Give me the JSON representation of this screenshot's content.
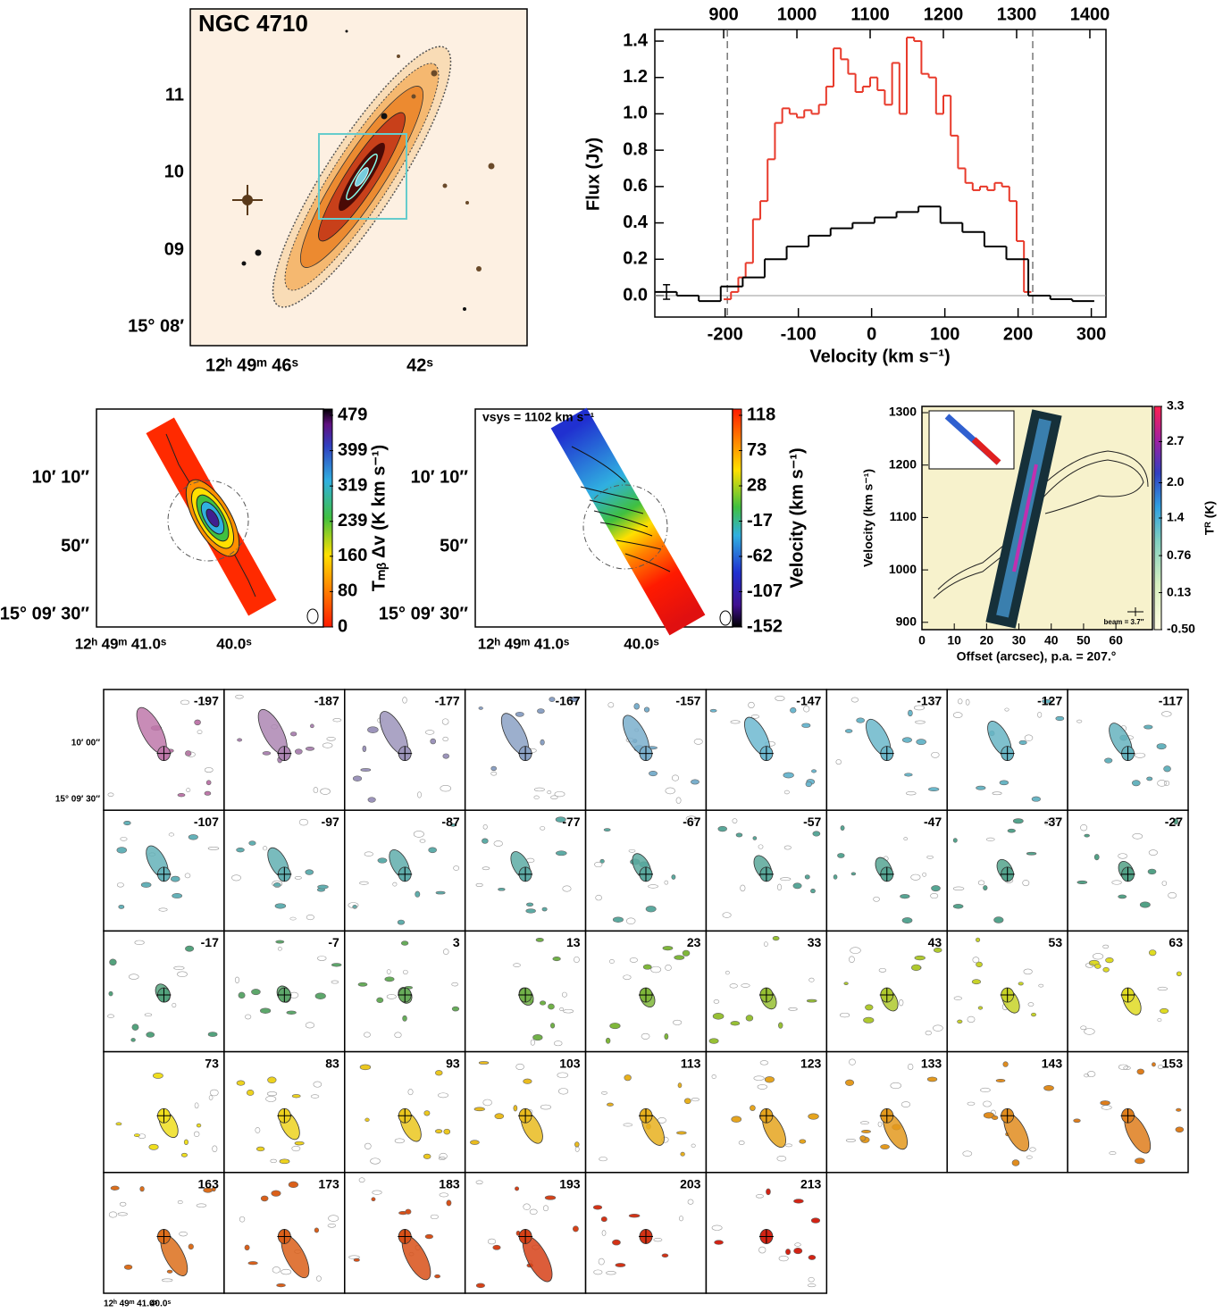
{
  "optical_panel": {
    "title": "NGC 4710",
    "ytick_labels": [
      "11",
      "10",
      "09",
      "15° 08′"
    ],
    "xtick_labels": [
      "12ʰ 49ᵐ 46ˢ",
      "42ˢ"
    ]
  },
  "chart_data": {
    "type": "step",
    "xlabel": "Velocity (km s⁻¹)",
    "ylabel": "Flux (Jy)",
    "xlim": [
      -296,
      320
    ],
    "ylim": [
      -0.118,
      1.464
    ],
    "xticks": [
      -200,
      -100,
      0,
      100,
      200,
      300
    ],
    "yticks": [
      {
        "value": 0,
        "label": "0.0"
      },
      {
        "value": 0.2,
        "label": "0.2"
      },
      {
        "value": 0.4,
        "label": "0.4"
      },
      {
        "value": 0.6,
        "label": "0.6"
      },
      {
        "value": 0.8,
        "label": "0.8"
      },
      {
        "value": 1,
        "label": "1.0"
      },
      {
        "value": 1.2,
        "label": "1.2"
      },
      {
        "value": 1.4,
        "label": "1.4"
      }
    ],
    "x2lim": [
      806,
      1422
    ],
    "x2ticks": [
      900,
      1000,
      1100,
      1200,
      1300,
      1400
    ],
    "vlines": [
      -197,
      220
    ],
    "error_bar": {
      "x": -280,
      "value": 0.02,
      "error": 0.04
    },
    "series": [
      {
        "color": "#e8392a",
        "bins": [
          -202,
          -192,
          -182,
          -172,
          -162,
          -152,
          -142,
          -132,
          -122,
          -112,
          -102,
          -92,
          -82,
          -72,
          -62,
          -52,
          -42,
          -32,
          -22,
          -12,
          -2,
          8,
          18,
          28,
          38,
          48,
          58,
          68,
          78,
          88,
          98,
          108,
          118,
          128,
          138,
          148,
          158,
          168,
          178,
          188,
          198,
          208,
          218
        ],
        "values": [
          -0.02,
          0.02,
          0.1,
          0.18,
          0.42,
          0.52,
          0.75,
          0.95,
          1.03,
          1.0,
          0.98,
          1.02,
          1.0,
          1.05,
          1.15,
          1.36,
          1.3,
          1.22,
          1.12,
          1.15,
          1.2,
          1.13,
          1.05,
          1.28,
          1.0,
          1.42,
          1.4,
          1.22,
          1.2,
          1.0,
          1.1,
          0.88,
          0.7,
          0.62,
          0.58,
          0.6,
          0.58,
          0.62,
          0.6,
          0.52,
          0.3,
          0.02
        ]
      },
      {
        "color": "#000000",
        "bins": [
          -296,
          -266,
          -236,
          -206,
          -176,
          -146,
          -116,
          -86,
          -56,
          -26,
          4,
          34,
          64,
          94,
          124,
          154,
          184,
          214,
          244,
          274,
          304
        ],
        "values": [
          0.02,
          0.0,
          -0.03,
          0.05,
          0.1,
          0.2,
          0.27,
          0.33,
          0.37,
          0.4,
          0.43,
          0.46,
          0.49,
          0.4,
          0.35,
          0.27,
          0.2,
          0.0,
          -0.02,
          -0.03
        ]
      }
    ]
  },
  "moment0_panel": {
    "colorbar_label": "Tₘᵦ Δv (K km s⁻¹)",
    "clim": [
      0,
      479
    ],
    "colorbar_ticks": [
      0,
      80,
      160,
      239,
      319,
      399,
      479
    ],
    "ytick_labels": [
      "10′ 10″",
      "50″",
      "15° 09′ 30″"
    ],
    "xtick_labels": [
      "12ʰ 49ᵐ 41.0ˢ",
      "40.0ˢ"
    ]
  },
  "velocity_panel": {
    "annotation": "vsys = 1102 km s⁻¹",
    "colorbar_label": "Velocity (km s⁻¹)",
    "clim": [
      -152,
      118
    ],
    "colorbar_ticks": [
      -152,
      -107,
      -62,
      -17,
      28,
      73,
      118
    ],
    "ytick_labels": [
      "10′ 10″",
      "50″",
      "15° 09′ 30″"
    ],
    "xtick_labels": [
      "12ʰ 49ᵐ 41.0ˢ",
      "40.0ˢ"
    ]
  },
  "pv_panel": {
    "xlabel": "Offset (arcsec), p.a. = 207.°",
    "ylabel": "Velocity (km s⁻¹)",
    "xlim": [
      0,
      71.3
    ],
    "ylim": [
      886,
      1312
    ],
    "xticks": [
      0,
      10,
      20,
      30,
      40,
      50,
      60
    ],
    "yticks": [
      900,
      1000,
      1100,
      1200,
      1300
    ],
    "colorbar_label": "Tᴿ (K)",
    "clim": [
      -0.5,
      3.3
    ],
    "colorbar_ticks": [
      {
        "value": -0.5,
        "label": "-0.50"
      },
      0.13,
      0.76,
      1.4,
      {
        "value": 2,
        "label": "2.0"
      },
      2.7,
      3.3
    ],
    "beam_label": "beam = 3.7″"
  },
  "channel_maps": {
    "channels": [
      -197,
      -187,
      -177,
      -167,
      -157,
      -147,
      -137,
      -127,
      -117,
      -107,
      -97,
      -87,
      -77,
      -67,
      -57,
      -47,
      -37,
      -27,
      -17,
      -7,
      3,
      13,
      23,
      33,
      43,
      53,
      63,
      73,
      83,
      93,
      103,
      113,
      123,
      133,
      143,
      153,
      163,
      173,
      183,
      193,
      203,
      213
    ],
    "ytick_labels": [
      "10′ 00″",
      "15° 09′ 30″"
    ],
    "xtick_labels": [
      "12ʰ 49ᵐ 41.0ˢ",
      "40.0ˢ"
    ]
  }
}
